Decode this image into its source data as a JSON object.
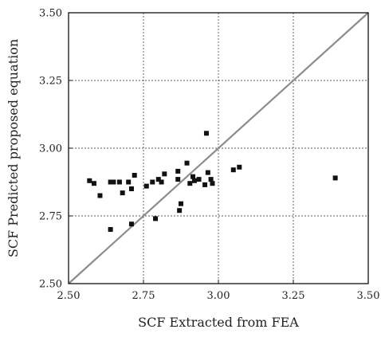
{
  "chart_data": {
    "type": "scatter",
    "title": "",
    "xlabel": "SCF Extracted from FEA",
    "ylabel": "SCF  Predicted proposed equation",
    "xlim": [
      2.5,
      3.5
    ],
    "ylim": [
      2.5,
      3.5
    ],
    "x_ticks": [
      "2.50",
      "2.75",
      "3.00",
      "3.25",
      "3.50"
    ],
    "y_ticks": [
      "2.50",
      "2.75",
      "3.00",
      "3.25",
      "3.50"
    ],
    "grid": true,
    "grid_style": "dotted",
    "reference_line": {
      "from": [
        2.5,
        2.5
      ],
      "to": [
        3.5,
        3.5
      ],
      "color": "#8c8c8c"
    },
    "marker_color": "#111111",
    "series": [
      {
        "points": [
          [
            2.57,
            2.88
          ],
          [
            2.585,
            2.87
          ],
          [
            2.605,
            2.825
          ],
          [
            2.64,
            2.875
          ],
          [
            2.64,
            2.7
          ],
          [
            2.65,
            2.875
          ],
          [
            2.67,
            2.875
          ],
          [
            2.68,
            2.835
          ],
          [
            2.7,
            2.875
          ],
          [
            2.71,
            2.85
          ],
          [
            2.72,
            2.9
          ],
          [
            2.71,
            2.72
          ],
          [
            2.76,
            2.86
          ],
          [
            2.78,
            2.875
          ],
          [
            2.79,
            2.74
          ],
          [
            2.8,
            2.885
          ],
          [
            2.81,
            2.875
          ],
          [
            2.82,
            2.905
          ],
          [
            2.865,
            2.915
          ],
          [
            2.87,
            2.77
          ],
          [
            2.875,
            2.795
          ],
          [
            2.865,
            2.885
          ],
          [
            2.895,
            2.945
          ],
          [
            2.905,
            2.87
          ],
          [
            2.915,
            2.895
          ],
          [
            2.92,
            2.88
          ],
          [
            2.935,
            2.885
          ],
          [
            2.955,
            2.865
          ],
          [
            2.96,
            3.055
          ],
          [
            2.965,
            2.91
          ],
          [
            2.975,
            2.885
          ],
          [
            2.98,
            2.87
          ],
          [
            3.05,
            2.92
          ],
          [
            3.07,
            2.93
          ],
          [
            3.39,
            2.89
          ]
        ]
      }
    ]
  }
}
